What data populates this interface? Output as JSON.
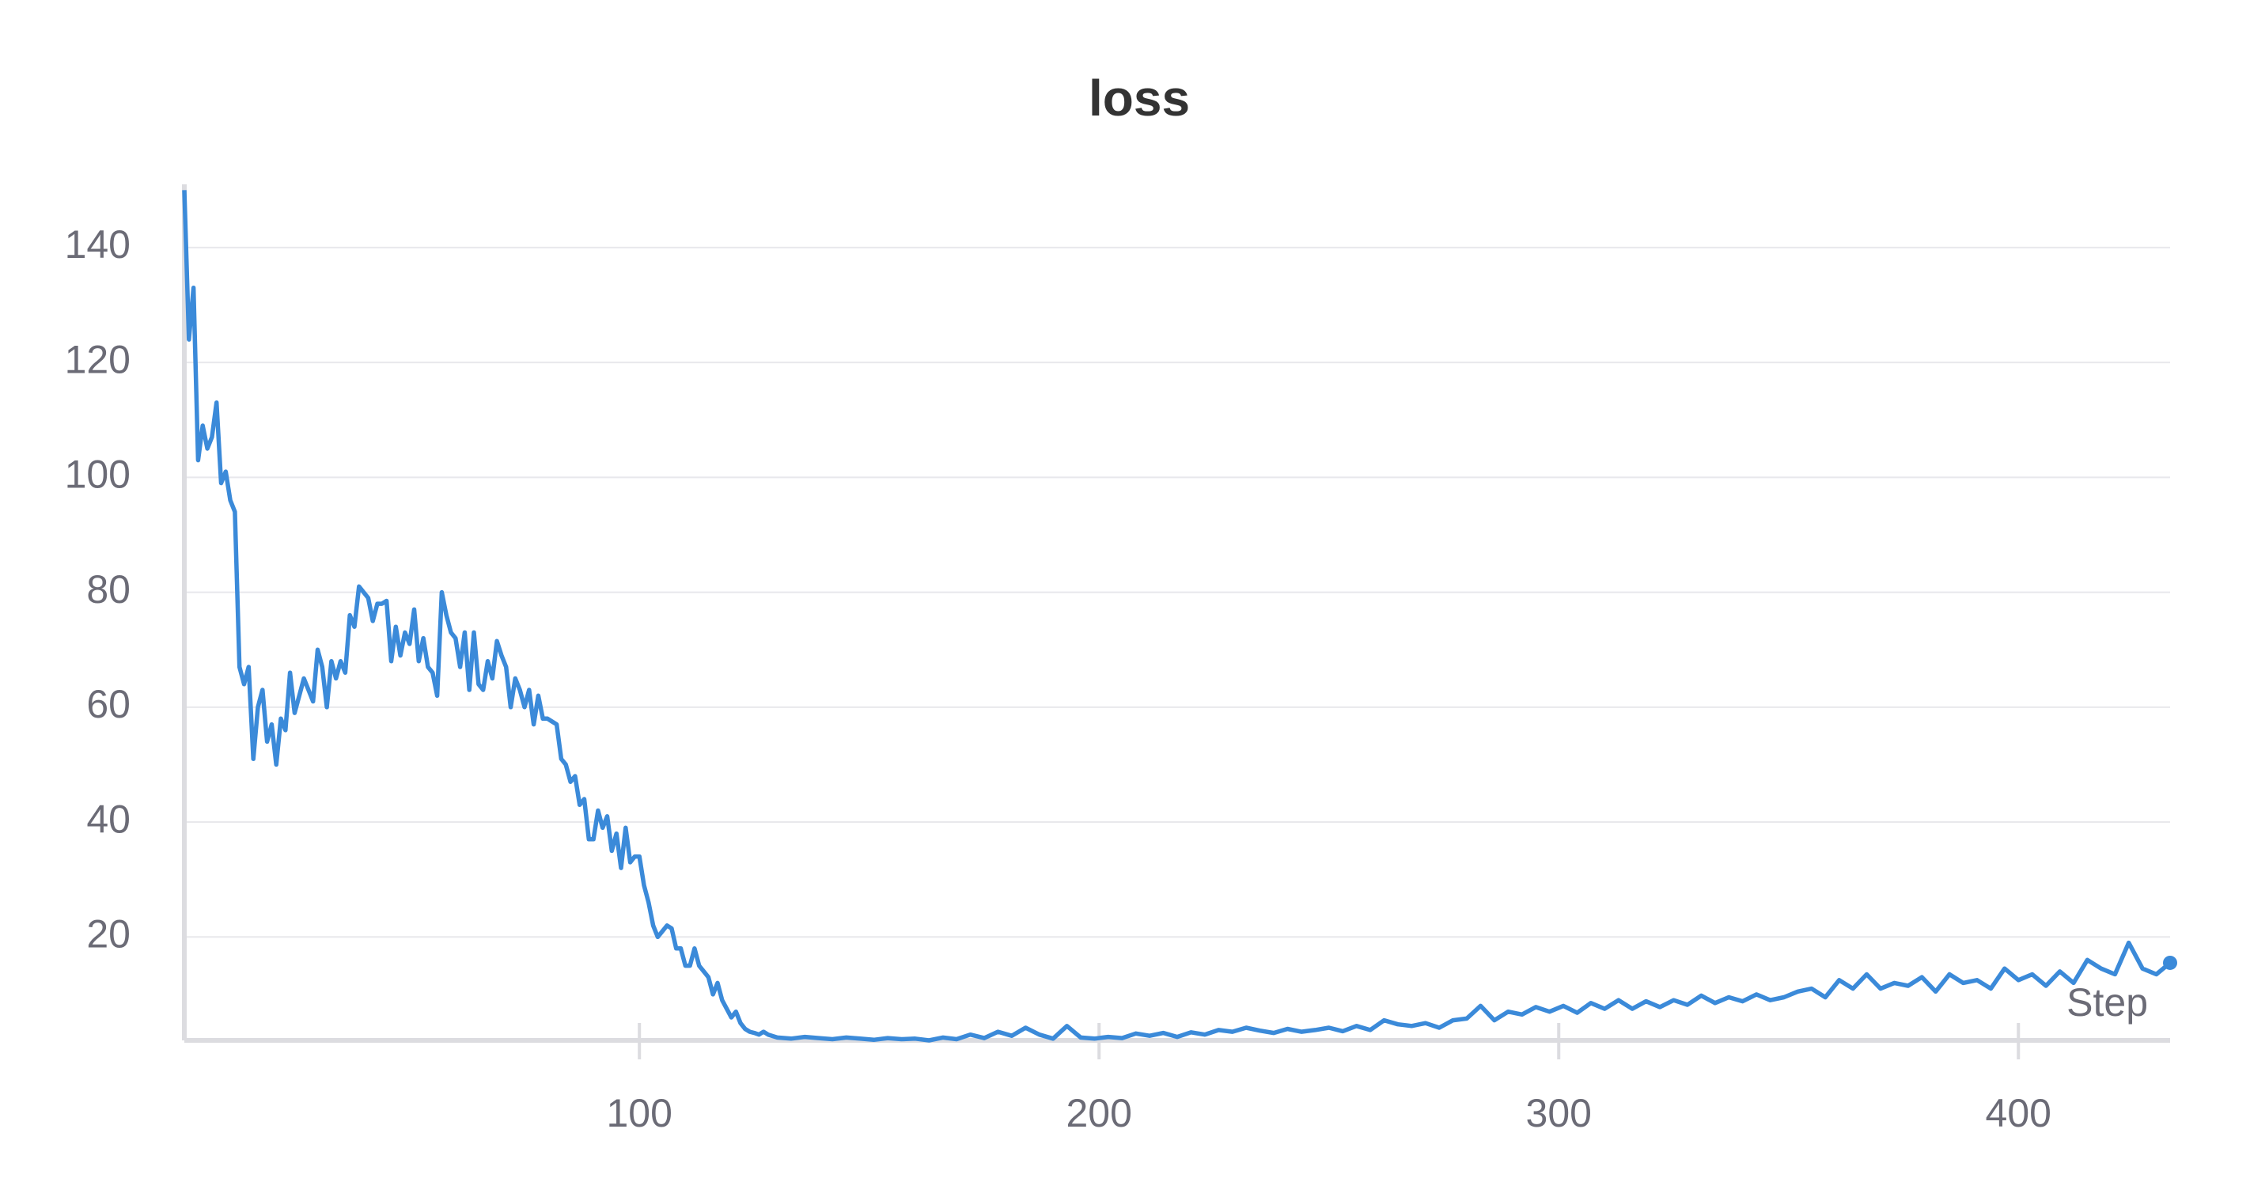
{
  "chart_data": {
    "type": "line",
    "title": "loss",
    "x_label": "Step",
    "x": [
      1,
      2,
      3,
      4,
      5,
      6,
      7,
      8,
      9,
      10,
      11,
      12,
      13,
      14,
      15,
      16,
      17,
      18,
      19,
      20,
      21,
      22,
      23,
      24,
      25,
      26,
      27,
      28,
      29,
      30,
      31,
      32,
      33,
      34,
      35,
      36,
      37,
      38,
      39,
      40,
      41,
      42,
      43,
      44,
      45,
      46,
      47,
      48,
      49,
      50,
      51,
      52,
      53,
      54,
      55,
      56,
      57,
      58,
      59,
      60,
      61,
      62,
      63,
      64,
      65,
      66,
      67,
      68,
      69,
      70,
      71,
      72,
      73,
      74,
      75,
      76,
      77,
      78,
      79,
      80,
      81,
      82,
      83,
      84,
      85,
      86,
      87,
      88,
      89,
      90,
      91,
      92,
      93,
      94,
      95,
      96,
      97,
      98,
      99,
      100,
      101,
      102,
      103,
      104,
      105,
      106,
      107,
      108,
      109,
      110,
      111,
      112,
      113,
      114,
      115,
      116,
      117,
      118,
      119,
      120,
      121,
      122,
      123,
      124,
      125,
      126,
      127,
      128,
      130,
      133,
      136,
      139,
      142,
      145,
      148,
      151,
      154,
      157,
      160,
      163,
      166,
      169,
      172,
      175,
      178,
      181,
      184,
      187,
      190,
      193,
      196,
      199,
      202,
      205,
      208,
      211,
      214,
      217,
      220,
      223,
      226,
      229,
      232,
      235,
      238,
      241,
      244,
      247,
      250,
      253,
      256,
      259,
      262,
      265,
      268,
      271,
      274,
      277,
      280,
      283,
      286,
      289,
      292,
      295,
      298,
      301,
      304,
      307,
      310,
      313,
      316,
      319,
      322,
      325,
      328,
      331,
      334,
      337,
      340,
      343,
      346,
      349,
      352,
      355,
      358,
      361,
      364,
      367,
      370,
      373,
      376,
      379,
      382,
      385,
      388,
      391,
      394,
      397,
      400,
      403,
      406,
      409,
      412,
      415,
      418,
      421,
      424,
      427,
      430,
      433
    ],
    "series": [
      {
        "name": "loss",
        "color": "#3b8ad9",
        "values": [
          150,
          124,
          133,
          103,
          109,
          105,
          107,
          113,
          99,
          101,
          96,
          94,
          67,
          64,
          67,
          51,
          60,
          63,
          54,
          57,
          50,
          58,
          56,
          66,
          59,
          62,
          65,
          63,
          61,
          70,
          67,
          60,
          68,
          65,
          68,
          66,
          76,
          74,
          81,
          80,
          79,
          75,
          78,
          78,
          78.5,
          68,
          74,
          69,
          73,
          71,
          77,
          68,
          72,
          67,
          66,
          62,
          80,
          76,
          73,
          72,
          67,
          73,
          63,
          73,
          64,
          63,
          68,
          65,
          71.5,
          69,
          67,
          60,
          65,
          63,
          60,
          63,
          57,
          62,
          58,
          58,
          57.5,
          57,
          51,
          50,
          47,
          48,
          43,
          44,
          37,
          37,
          42,
          39,
          41,
          35,
          38,
          32,
          39,
          33,
          34,
          34,
          29,
          26,
          22,
          20,
          21,
          22,
          21.5,
          18,
          18,
          15,
          15,
          18,
          15,
          14,
          13,
          10,
          12,
          9,
          7.5,
          6,
          7,
          5,
          4,
          3.5,
          3.3,
          3,
          3.5,
          3,
          2.5,
          2.3,
          2.6,
          2.4,
          2.2,
          2.5,
          2.3,
          2.1,
          2.4,
          2.2,
          2.3,
          2.0,
          2.5,
          2.2,
          3.0,
          2.4,
          3.5,
          2.8,
          4.2,
          3.0,
          2.3,
          4.5,
          2.5,
          2.3,
          2.6,
          2.4,
          3.2,
          2.8,
          3.3,
          2.6,
          3.4,
          3.0,
          3.8,
          3.5,
          4.2,
          3.7,
          3.3,
          4.0,
          3.5,
          3.8,
          4.2,
          3.6,
          4.5,
          3.8,
          5.5,
          4.8,
          4.5,
          5.0,
          4.2,
          5.5,
          5.8,
          8.0,
          5.5,
          7.0,
          6.5,
          7.8,
          7.0,
          8.0,
          6.8,
          8.5,
          7.5,
          9.0,
          7.5,
          8.8,
          7.8,
          9.0,
          8.2,
          9.8,
          8.5,
          9.5,
          8.8,
          10.0,
          9.0,
          9.5,
          10.5,
          11.0,
          9.5,
          12.5,
          11.0,
          13.5,
          11.0,
          12.0,
          11.5,
          13.0,
          10.5,
          13.5,
          12.0,
          12.5,
          11.0,
          14.5,
          12.5,
          13.5,
          11.5,
          14.0,
          12.0,
          16.0,
          14.5,
          13.5,
          19.0,
          14.5,
          13.5,
          15.5
        ]
      }
    ],
    "xlim": [
      1,
      433
    ],
    "ylim": [
      2,
      151
    ],
    "xticks": [
      100,
      200,
      300,
      400
    ],
    "yticks": [
      20,
      40,
      60,
      80,
      100,
      120,
      140
    ],
    "grid": true
  }
}
